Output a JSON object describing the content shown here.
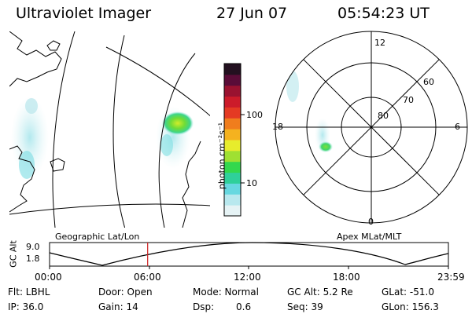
{
  "header": {
    "title": "Ultraviolet Imager",
    "date": "27 Jun 07",
    "time": "05:54:23 UT"
  },
  "colorbar": {
    "label": "photon cm⁻²s⁻¹",
    "ticks": [
      "100",
      "10"
    ],
    "scale": "log",
    "colors": [
      "#e6f3f5",
      "#b8e8ee",
      "#67d8e0",
      "#2fd09a",
      "#33d84d",
      "#9fe032",
      "#e7ec2c",
      "#f5b21f",
      "#f07d1d",
      "#e43a23",
      "#cc1b2a",
      "#9a1230",
      "#5a0c38",
      "#231020"
    ]
  },
  "left_panel": {
    "caption": "Geographic Lat/Lon"
  },
  "right_panel": {
    "caption": "Apex MLat/MLT",
    "mlt_labels": {
      "top": "12",
      "left": "18",
      "right": "6",
      "bottom": "0"
    },
    "mlat_labels": [
      "60",
      "70",
      "80"
    ]
  },
  "timeline": {
    "ylabel": "GC Alt",
    "y_ticks": [
      "9.0",
      "1.8"
    ],
    "x_ticks": [
      "00:00",
      "06:00",
      "12:00",
      "18:00",
      "23:59"
    ],
    "marker_time": "05:54",
    "marker_color": "#cc2222"
  },
  "footer": {
    "flt": "Flt: LBHL",
    "door": "Door: Open",
    "mode": "Mode: Normal",
    "gc_alt": "GC Alt: 5.2 Re",
    "glat": "GLat: -51.0",
    "ip": "IP: 36.0",
    "gain": "Gain: 14",
    "dsp_label": "Dsp:",
    "dsp_value": "0.6",
    "seq": "Seq: 39",
    "glon": "GLon: 156.3"
  }
}
